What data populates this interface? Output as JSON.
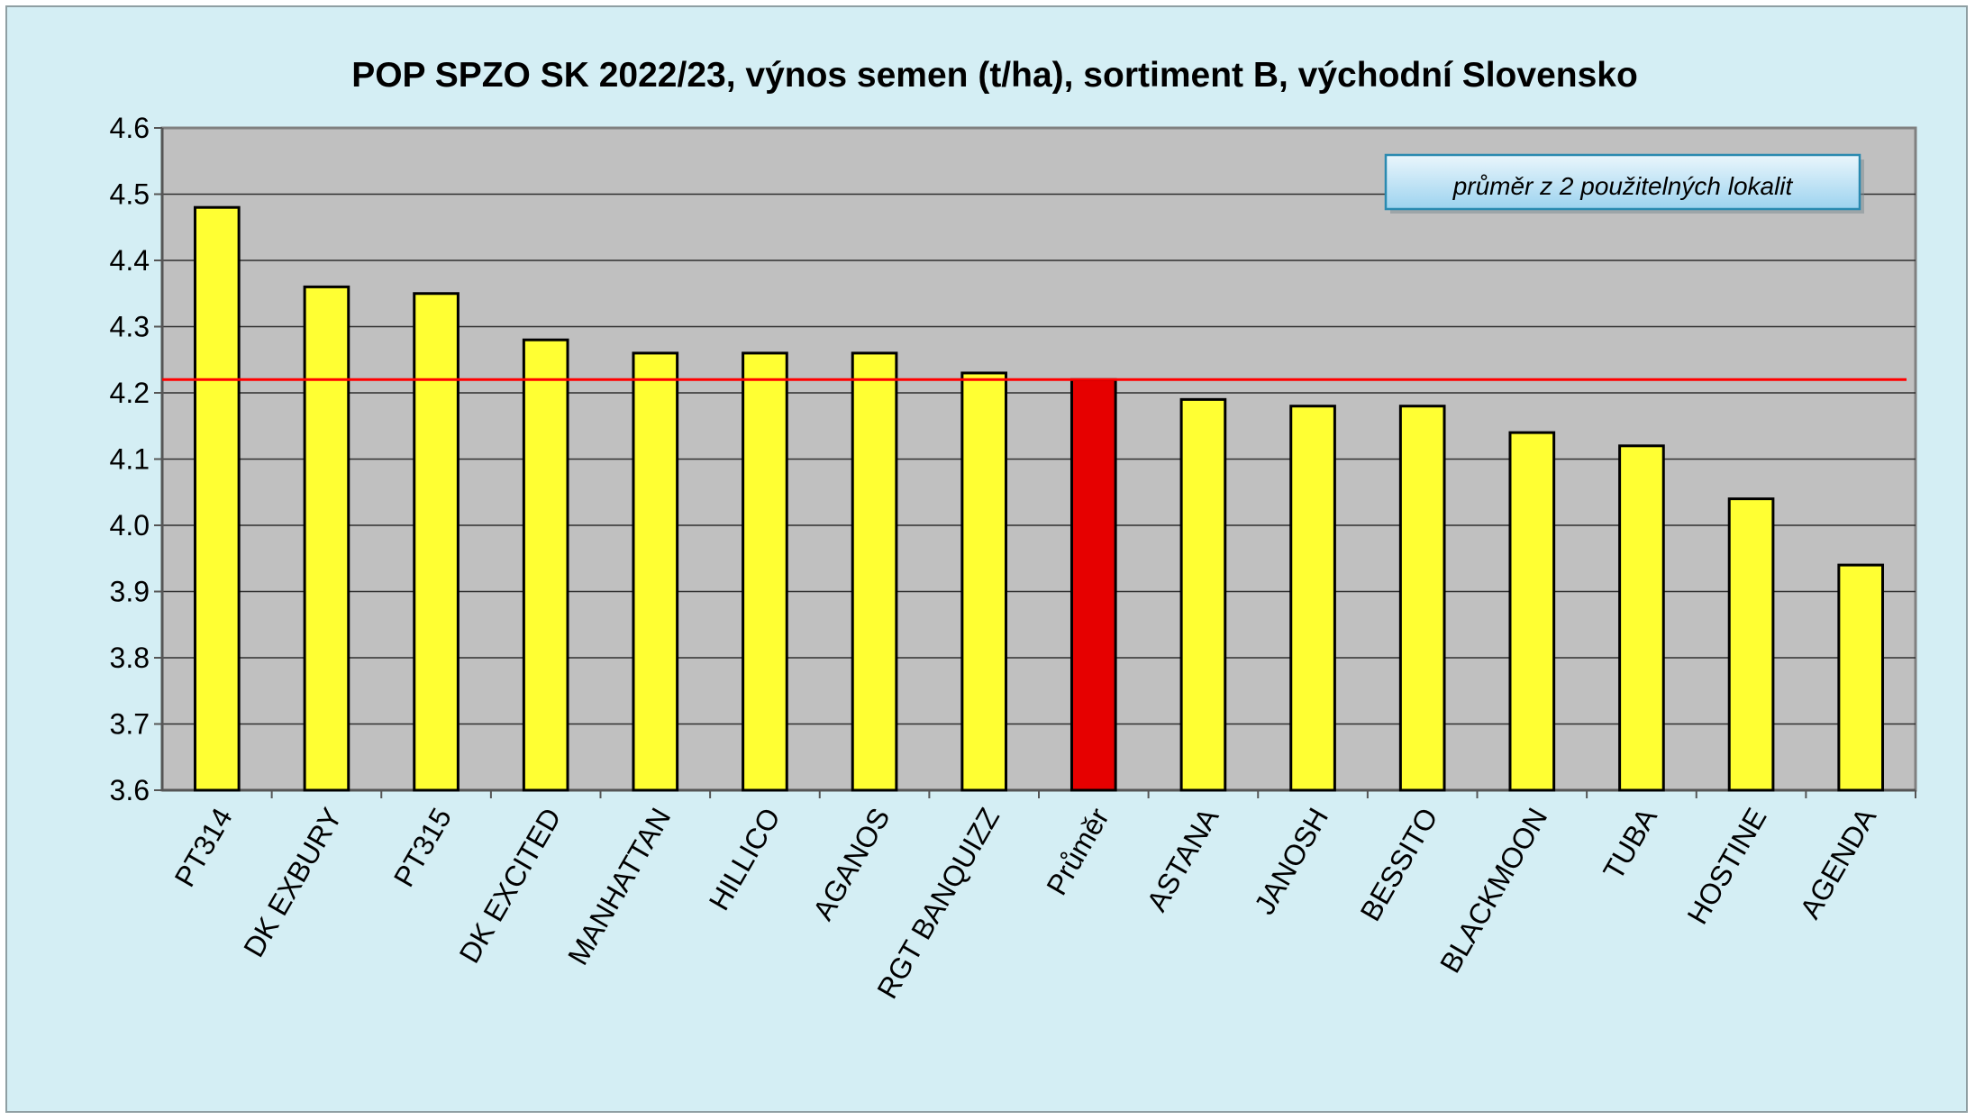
{
  "chart_data": {
    "type": "bar",
    "title": "POP SPZO SK 2022/23, výnos semen (t/ha), sortiment B, východní Slovensko",
    "xlabel": "",
    "ylabel": "",
    "ylim": [
      3.6,
      4.6
    ],
    "yticks": [
      "4.6",
      "4.5",
      "4.4",
      "4.3",
      "4.2",
      "4.1",
      "4.0",
      "3.9",
      "3.8",
      "3.7",
      "3.6"
    ],
    "grid": true,
    "categories": [
      "PT314",
      "DK EXBURY",
      "PT315",
      "DK EXCITED",
      "MANHATTAN",
      "HILLICO",
      "AGANOS",
      "RGT BANQUIZZ",
      "Průměr",
      "ASTANA",
      "JANOSH",
      "BESSITO",
      "BLACKMOON",
      "TUBA",
      "HOSTINE",
      "AGENDA"
    ],
    "values": [
      4.48,
      4.36,
      4.35,
      4.28,
      4.26,
      4.26,
      4.26,
      4.23,
      4.22,
      4.19,
      4.18,
      4.18,
      4.14,
      4.12,
      4.04,
      3.94
    ],
    "bar_colors": [
      "#ffff33",
      "#ffff33",
      "#ffff33",
      "#ffff33",
      "#ffff33",
      "#ffff33",
      "#ffff33",
      "#ffff33",
      "#e60000",
      "#ffff33",
      "#ffff33",
      "#ffff33",
      "#ffff33",
      "#ffff33",
      "#ffff33",
      "#ffff33"
    ],
    "reference_line": {
      "value": 4.22,
      "color": "#ff0000"
    },
    "annotation": "průměr z 2 použitelných lokalit",
    "plot_background": "#c0c0c0",
    "chart_background": "#d4eef4"
  }
}
